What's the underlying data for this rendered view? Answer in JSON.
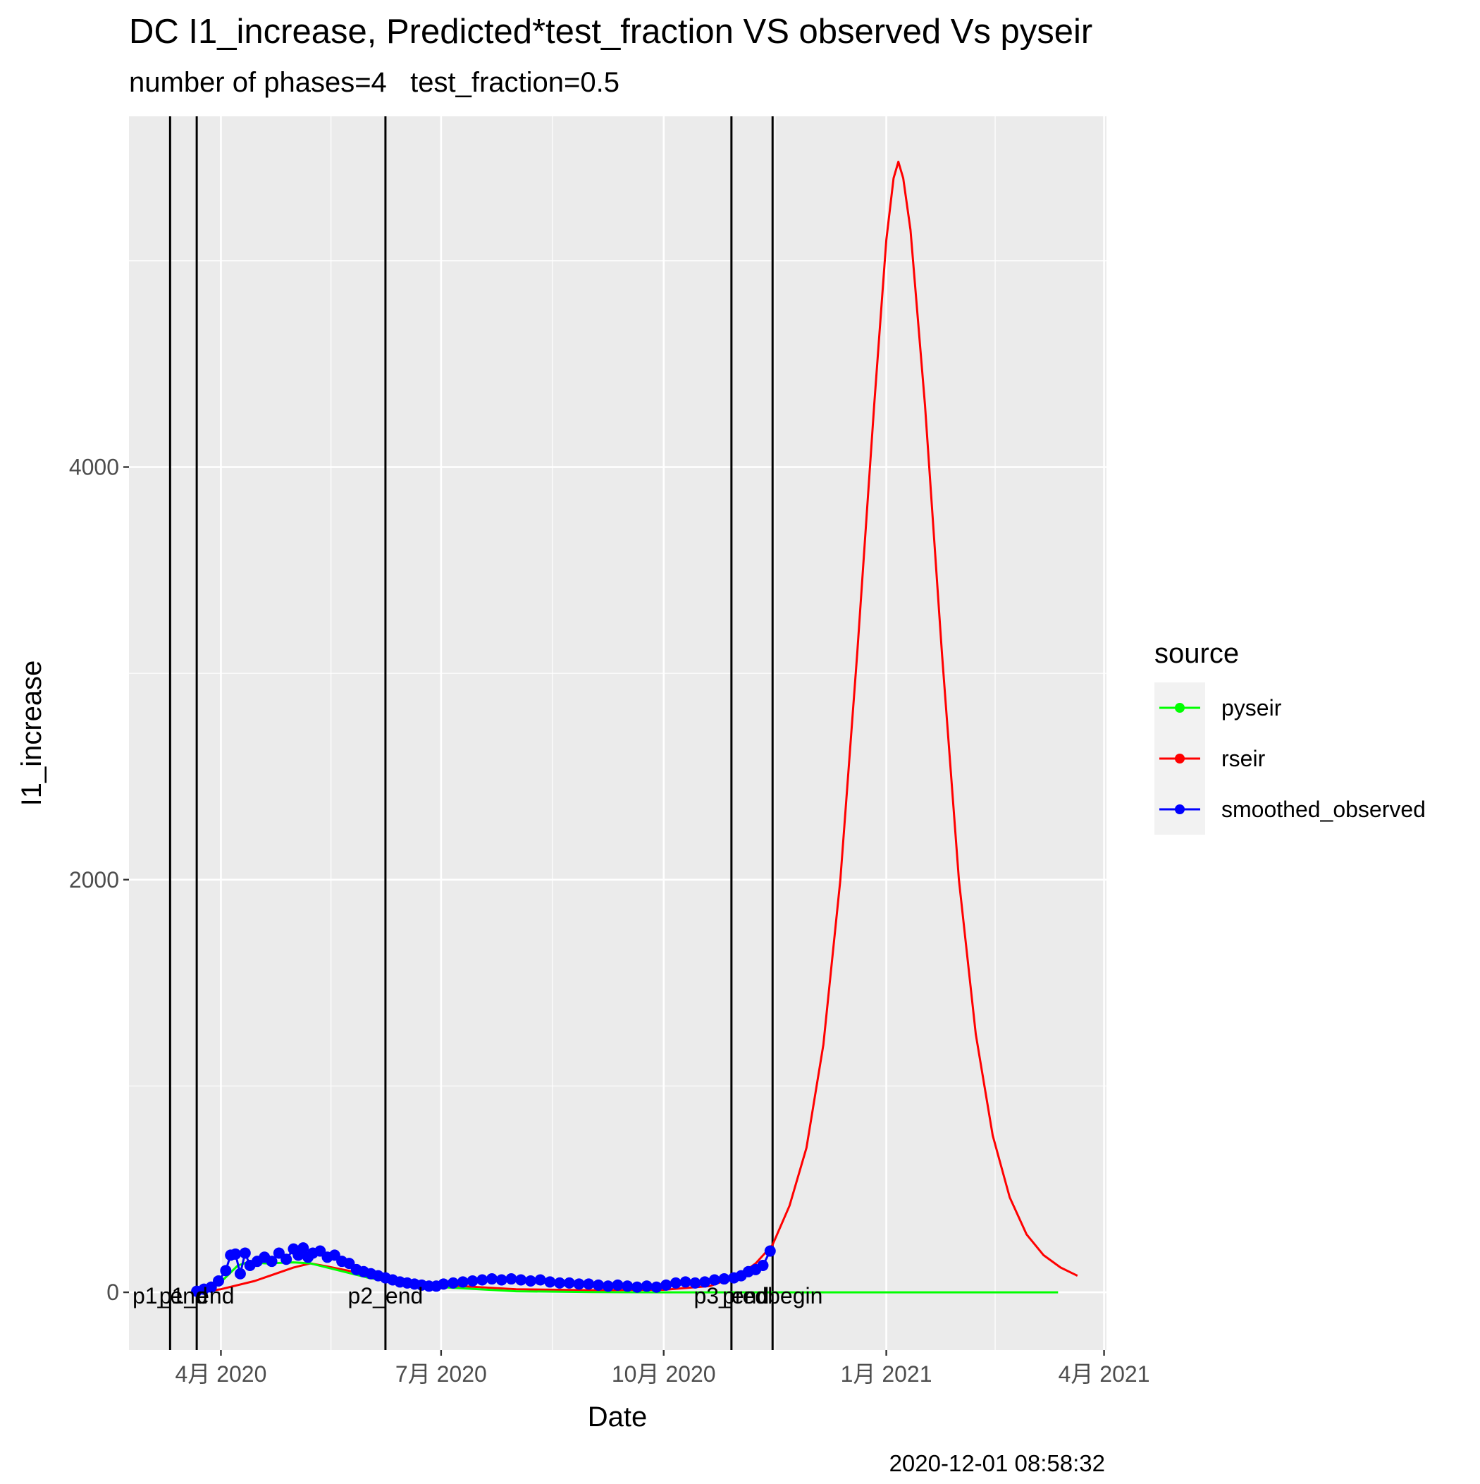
{
  "chart_data": {
    "type": "line",
    "title": "DC I1_increase, Predicted*test_fraction VS observed Vs pyseir",
    "subtitle": "number of phases=4   test_fraction=0.5",
    "xlabel": "Date",
    "ylabel": "I1_increase",
    "caption": "2020-12-01 08:58:32",
    "x_tick_labels": [
      {
        "date": "2020-04-01",
        "label": "4月 2020"
      },
      {
        "date": "2020-07-01",
        "label": "7月 2020"
      },
      {
        "date": "2020-10-01",
        "label": "10月 2020"
      },
      {
        "date": "2021-01-01",
        "label": "1月 2021"
      },
      {
        "date": "2021-04-01",
        "label": "4月 2021"
      }
    ],
    "y_ticks": [
      0,
      2000,
      4000
    ],
    "xlim": [
      "2020-02-23",
      "2021-04-02"
    ],
    "ylim": [
      -280,
      5700
    ],
    "grid": true,
    "legend": {
      "title": "source",
      "position": "right",
      "entries": [
        {
          "name": "pyseir",
          "color": "#00FF00"
        },
        {
          "name": "rseir",
          "color": "#FF0000"
        },
        {
          "name": "smoothed_observed",
          "color": "#0000FF"
        }
      ]
    },
    "vlines": [
      {
        "date": "2020-03-11",
        "label": "p1_end"
      },
      {
        "date": "2020-03-22",
        "label": "p1_end"
      },
      {
        "date": "2020-06-08",
        "label": "p2_end"
      },
      {
        "date": "2020-10-29",
        "label": "p3_end"
      },
      {
        "date": "2020-11-15",
        "label": "predbegin"
      }
    ],
    "series": [
      {
        "name": "rseir",
        "color": "#FF0000",
        "points": [
          [
            "2020-03-22",
            0
          ],
          [
            "2020-04-01",
            15
          ],
          [
            "2020-04-15",
            55
          ],
          [
            "2020-05-01",
            120
          ],
          [
            "2020-05-08",
            140
          ],
          [
            "2020-05-15",
            125
          ],
          [
            "2020-06-01",
            85
          ],
          [
            "2020-06-15",
            55
          ],
          [
            "2020-07-01",
            35
          ],
          [
            "2020-08-01",
            15
          ],
          [
            "2020-09-01",
            10
          ],
          [
            "2020-10-01",
            12
          ],
          [
            "2020-10-20",
            30
          ],
          [
            "2020-11-01",
            80
          ],
          [
            "2020-11-08",
            140
          ],
          [
            "2020-11-15",
            230
          ],
          [
            "2020-11-22",
            420
          ],
          [
            "2020-11-29",
            700
          ],
          [
            "2020-12-06",
            1200
          ],
          [
            "2020-12-13",
            2000
          ],
          [
            "2020-12-20",
            3100
          ],
          [
            "2020-12-27",
            4300
          ],
          [
            "2021-01-01",
            5100
          ],
          [
            "2021-01-04",
            5400
          ],
          [
            "2021-01-06",
            5480
          ],
          [
            "2021-01-08",
            5400
          ],
          [
            "2021-01-11",
            5150
          ],
          [
            "2021-01-17",
            4300
          ],
          [
            "2021-01-24",
            3100
          ],
          [
            "2021-01-31",
            2000
          ],
          [
            "2021-02-07",
            1250
          ],
          [
            "2021-02-14",
            760
          ],
          [
            "2021-02-21",
            460
          ],
          [
            "2021-02-28",
            280
          ],
          [
            "2021-03-07",
            180
          ],
          [
            "2021-03-14",
            120
          ],
          [
            "2021-03-21",
            80
          ]
        ]
      },
      {
        "name": "pyseir",
        "color": "#00FF00",
        "points": [
          [
            "2020-03-22",
            0
          ],
          [
            "2020-03-27",
            20
          ],
          [
            "2020-04-01",
            50
          ],
          [
            "2020-04-08",
            130
          ],
          [
            "2020-04-12",
            145
          ],
          [
            "2020-04-20",
            140
          ],
          [
            "2020-05-01",
            145
          ],
          [
            "2020-05-08",
            140
          ],
          [
            "2020-05-20",
            105
          ],
          [
            "2020-06-01",
            70
          ],
          [
            "2020-06-15",
            45
          ],
          [
            "2020-07-01",
            25
          ],
          [
            "2020-08-01",
            5
          ],
          [
            "2020-09-01",
            1
          ],
          [
            "2020-10-01",
            0
          ],
          [
            "2020-11-01",
            0
          ],
          [
            "2020-12-01",
            0
          ],
          [
            "2021-01-01",
            0
          ],
          [
            "2021-02-01",
            0
          ],
          [
            "2021-03-13",
            0
          ]
        ]
      },
      {
        "name": "smoothed_observed",
        "color": "#0000FF",
        "points": [
          [
            "2020-03-22",
            5
          ],
          [
            "2020-03-25",
            15
          ],
          [
            "2020-03-28",
            25
          ],
          [
            "2020-03-31",
            55
          ],
          [
            "2020-04-03",
            105
          ],
          [
            "2020-04-05",
            180
          ],
          [
            "2020-04-07",
            185
          ],
          [
            "2020-04-09",
            90
          ],
          [
            "2020-04-11",
            190
          ],
          [
            "2020-04-13",
            130
          ],
          [
            "2020-04-16",
            150
          ],
          [
            "2020-04-19",
            170
          ],
          [
            "2020-04-22",
            150
          ],
          [
            "2020-04-25",
            190
          ],
          [
            "2020-04-28",
            160
          ],
          [
            "2020-05-01",
            210
          ],
          [
            "2020-05-03",
            180
          ],
          [
            "2020-05-05",
            215
          ],
          [
            "2020-05-07",
            170
          ],
          [
            "2020-05-09",
            190
          ],
          [
            "2020-05-12",
            200
          ],
          [
            "2020-05-15",
            170
          ],
          [
            "2020-05-18",
            180
          ],
          [
            "2020-05-21",
            150
          ],
          [
            "2020-05-24",
            140
          ],
          [
            "2020-05-27",
            110
          ],
          [
            "2020-05-30",
            100
          ],
          [
            "2020-06-02",
            90
          ],
          [
            "2020-06-05",
            80
          ],
          [
            "2020-06-08",
            70
          ],
          [
            "2020-06-11",
            60
          ],
          [
            "2020-06-14",
            50
          ],
          [
            "2020-06-17",
            45
          ],
          [
            "2020-06-20",
            40
          ],
          [
            "2020-06-23",
            35
          ],
          [
            "2020-06-26",
            30
          ],
          [
            "2020-06-29",
            30
          ],
          [
            "2020-07-02",
            40
          ],
          [
            "2020-07-06",
            45
          ],
          [
            "2020-07-10",
            50
          ],
          [
            "2020-07-14",
            55
          ],
          [
            "2020-07-18",
            60
          ],
          [
            "2020-07-22",
            65
          ],
          [
            "2020-07-26",
            60
          ],
          [
            "2020-07-30",
            65
          ],
          [
            "2020-08-03",
            60
          ],
          [
            "2020-08-07",
            55
          ],
          [
            "2020-08-11",
            60
          ],
          [
            "2020-08-15",
            50
          ],
          [
            "2020-08-19",
            45
          ],
          [
            "2020-08-23",
            45
          ],
          [
            "2020-08-27",
            40
          ],
          [
            "2020-08-31",
            40
          ],
          [
            "2020-09-04",
            35
          ],
          [
            "2020-09-08",
            30
          ],
          [
            "2020-09-12",
            35
          ],
          [
            "2020-09-16",
            30
          ],
          [
            "2020-09-20",
            25
          ],
          [
            "2020-09-24",
            30
          ],
          [
            "2020-09-28",
            25
          ],
          [
            "2020-10-02",
            35
          ],
          [
            "2020-10-06",
            45
          ],
          [
            "2020-10-10",
            50
          ],
          [
            "2020-10-14",
            45
          ],
          [
            "2020-10-18",
            50
          ],
          [
            "2020-10-22",
            60
          ],
          [
            "2020-10-26",
            65
          ],
          [
            "2020-10-30",
            70
          ],
          [
            "2020-11-02",
            80
          ],
          [
            "2020-11-05",
            100
          ],
          [
            "2020-11-08",
            110
          ],
          [
            "2020-11-11",
            130
          ],
          [
            "2020-11-14",
            200
          ]
        ]
      }
    ]
  }
}
